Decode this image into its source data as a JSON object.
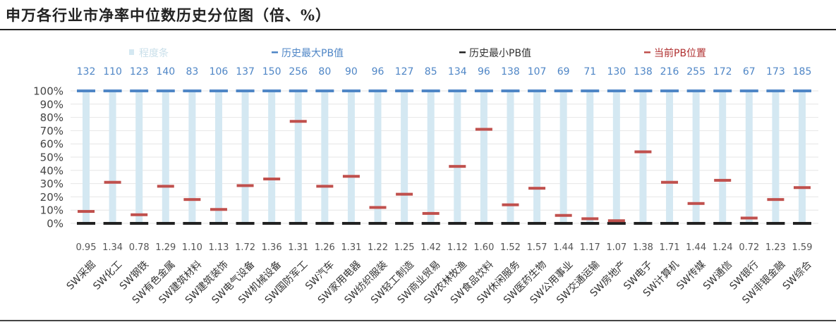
{
  "title": "申万各行业市净率中位数历史分位图（倍、%）",
  "chart_data": {
    "type": "bar",
    "title": "申万各行业市净率中位数历史分位图（倍、%）",
    "legend": {
      "placement": "top",
      "items": [
        {
          "label": "程度条",
          "color": "#d4e8f2"
        },
        {
          "label": "历史最大PB值",
          "color": "#4f86c6"
        },
        {
          "label": "历史最小PB值",
          "color": "#222222"
        },
        {
          "label": "当前PB位置",
          "color": "#c0504d"
        }
      ]
    },
    "y_ticks": [
      "0%",
      "10%",
      "20%",
      "30%",
      "40%",
      "50%",
      "60%",
      "70%",
      "80%",
      "90%",
      "100%"
    ],
    "ylim": [
      0,
      100
    ],
    "grid": true,
    "categories": [
      "SW采掘",
      "SW化工",
      "SW钢铁",
      "SW有色金属",
      "SW建筑材料",
      "SW建筑装饰",
      "SW电气设备",
      "SW机械设备",
      "SW国防军工",
      "SW汽车",
      "SW家用电器",
      "SW纺织服装",
      "SW轻工制造",
      "SW商业贸易",
      "SW农林牧渔",
      "SW食品饮料",
      "SW休闲服务",
      "SW医药生物",
      "SW公用事业",
      "SW交通运输",
      "SW房地产",
      "SW电子",
      "SW计算机",
      "SW传媒",
      "SW通信",
      "SW银行",
      "SW非银金融",
      "SW综合"
    ],
    "max_pb_labels": [
      "132",
      "110",
      "123",
      "140",
      "83",
      "106",
      "137",
      "150",
      "256",
      "80",
      "90",
      "96",
      "127",
      "85",
      "134",
      "96",
      "138",
      "107",
      "69",
      "71",
      "130",
      "138",
      "216",
      "255",
      "172",
      "67",
      "173",
      "185"
    ],
    "min_pb_labels": [
      "0.95",
      "1.34",
      "0.78",
      "1.29",
      "1.10",
      "1.13",
      "1.72",
      "1.36",
      "1.31",
      "1.26",
      "1.31",
      "1.22",
      "1.25",
      "1.42",
      "1.12",
      "1.60",
      "1.52",
      "1.57",
      "1.44",
      "1.17",
      "1.07",
      "1.38",
      "1.71",
      "1.44",
      "1.24",
      "0.72",
      "1.23",
      "1.59"
    ],
    "series": [
      {
        "name": "程度条",
        "values": [
          100,
          100,
          100,
          100,
          100,
          100,
          100,
          100,
          100,
          100,
          100,
          100,
          100,
          100,
          100,
          100,
          100,
          100,
          100,
          100,
          100,
          100,
          100,
          100,
          100,
          100,
          100,
          100
        ]
      },
      {
        "name": "历史最大PB值",
        "values": [
          100,
          100,
          100,
          100,
          100,
          100,
          100,
          100,
          100,
          100,
          100,
          100,
          100,
          100,
          100,
          100,
          100,
          100,
          100,
          100,
          100,
          100,
          100,
          100,
          100,
          100,
          100,
          100
        ]
      },
      {
        "name": "历史最小PB值",
        "values": [
          0,
          0,
          0,
          0,
          0,
          0,
          0,
          0,
          0,
          0,
          0,
          0,
          0,
          0,
          0,
          0,
          0,
          0,
          0,
          0,
          0,
          0,
          0,
          0,
          0,
          0,
          0,
          0
        ]
      },
      {
        "name": "当前PB位置",
        "values": [
          9,
          31,
          6.5,
          28,
          18,
          10.5,
          28.5,
          33.5,
          77,
          28,
          35.5,
          12,
          22,
          7.5,
          43,
          71,
          14,
          26.5,
          6,
          3.5,
          2,
          54,
          31,
          15,
          32.5,
          4,
          18,
          27
        ]
      }
    ]
  }
}
